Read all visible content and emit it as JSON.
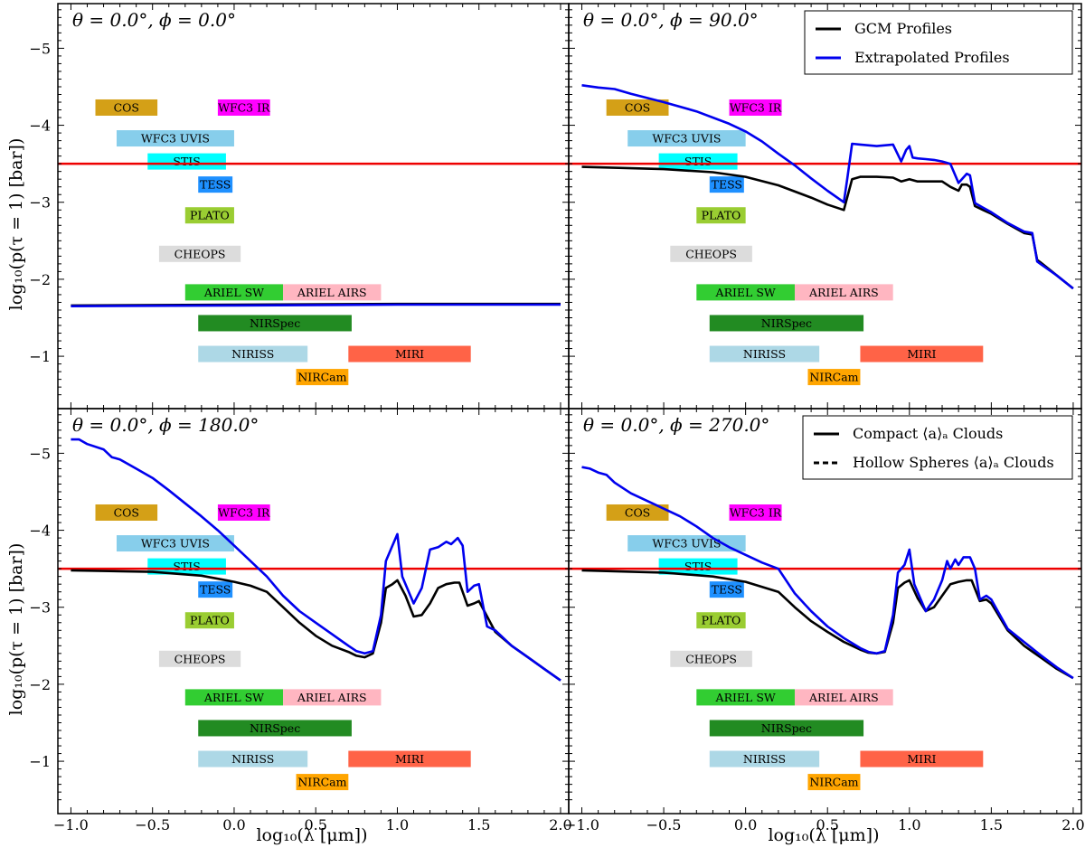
{
  "chart_data": {
    "type": "line",
    "xlabel": "log₁₀(λ [μm])",
    "ylabel": "log₁₀(p(τ = 1) [bar])",
    "xlim": [
      -1.08,
      2.05
    ],
    "ylim": [
      -5.58,
      -0.32
    ],
    "y_inverted": true,
    "xticks": [
      -1.0,
      -0.5,
      0.0,
      0.5,
      1.0,
      1.5,
      2.0
    ],
    "xtick_labels": [
      "−1.0",
      "−0.5",
      "0.0",
      "0.5",
      "1.0",
      "1.5",
      "2.0"
    ],
    "yticks": [
      -5,
      -4,
      -3,
      -2,
      -1
    ],
    "ytick_labels": [
      "−5",
      "−4",
      "−3",
      "−2",
      "−1"
    ],
    "reference_line": {
      "y": -3.5,
      "color": "#ee0000"
    },
    "colors": {
      "gcm": "#000000",
      "extrapolated": "#0000ee",
      "reference": "#ee0000"
    },
    "instrument_bands": [
      {
        "name": "COS",
        "x0": -0.85,
        "x1": -0.47,
        "y": -4.23,
        "color": "#d4a017"
      },
      {
        "name": "WFC3 IR",
        "x0": -0.1,
        "x1": 0.22,
        "y": -4.23,
        "color": "#ff00ff"
      },
      {
        "name": "WFC3 UVIS",
        "x0": -0.72,
        "x1": 0.0,
        "y": -3.83,
        "color": "#87ceeb"
      },
      {
        "name": "STIS",
        "x0": -0.53,
        "x1": -0.05,
        "y": -3.53,
        "color": "#00ffff"
      },
      {
        "name": "TESS",
        "x0": -0.22,
        "x1": -0.01,
        "y": -3.23,
        "color": "#1e90ff"
      },
      {
        "name": "PLATO",
        "x0": -0.3,
        "x1": 0.0,
        "y": -2.83,
        "color": "#9acd32"
      },
      {
        "name": "CHEOPS",
        "x0": -0.46,
        "x1": 0.04,
        "y": -2.33,
        "color": "#dcdcdc"
      },
      {
        "name": "ARIEL SW",
        "x0": -0.3,
        "x1": 0.3,
        "y": -1.83,
        "color": "#32cd32"
      },
      {
        "name": "ARIEL AIRS",
        "x0": 0.3,
        "x1": 0.9,
        "y": -1.83,
        "color": "#ffb6c1"
      },
      {
        "name": "NIRSpec",
        "x0": -0.22,
        "x1": 0.72,
        "y": -1.43,
        "color": "#228b22"
      },
      {
        "name": "NIRISS",
        "x0": -0.22,
        "x1": 0.45,
        "y": -1.03,
        "color": "#add8e6"
      },
      {
        "name": "MIRI",
        "x0": 0.7,
        "x1": 1.45,
        "y": -1.03,
        "color": "#ff6347"
      },
      {
        "name": "NIRCam",
        "x0": 0.38,
        "x1": 0.7,
        "y": -0.73,
        "color": "#ffa500"
      }
    ],
    "panels": [
      {
        "title": "θ = 0.0°, ϕ = 0.0°",
        "series": [
          {
            "name": "GCM Profiles",
            "color": "#000000",
            "x": [
              -1.0,
              0.0,
              1.0,
              1.5,
              2.0
            ],
            "y": [
              -1.66,
              -1.67,
              -1.68,
              -1.68,
              -1.68
            ]
          },
          {
            "name": "Extrapolated Profiles",
            "color": "#0000ee",
            "x": [
              -1.0,
              0.0,
              1.0,
              1.5,
              2.0
            ],
            "y": [
              -1.65,
              -1.66,
              -1.67,
              -1.67,
              -1.67
            ]
          }
        ]
      },
      {
        "title": "θ = 0.0°, ϕ = 90.0°",
        "legend": {
          "position": "upper right",
          "entries": [
            {
              "label": "GCM Profiles",
              "color": "#000000",
              "dash": "solid"
            },
            {
              "label": "Extrapolated Profiles",
              "color": "#0000ee",
              "dash": "solid"
            }
          ]
        },
        "series": [
          {
            "name": "GCM Profiles",
            "color": "#000000",
            "x": [
              -1.0,
              -0.5,
              -0.2,
              0.0,
              0.2,
              0.4,
              0.5,
              0.6,
              0.65,
              0.7,
              0.8,
              0.9,
              0.95,
              1.0,
              1.05,
              1.1,
              1.2,
              1.25,
              1.3,
              1.32,
              1.35,
              1.37,
              1.4,
              1.45,
              1.5,
              1.6,
              1.7,
              1.75,
              1.78,
              1.8,
              1.9,
              2.0
            ],
            "y": [
              -3.46,
              -3.43,
              -3.39,
              -3.33,
              -3.22,
              -3.06,
              -2.97,
              -2.9,
              -3.3,
              -3.33,
              -3.33,
              -3.32,
              -3.27,
              -3.3,
              -3.27,
              -3.27,
              -3.27,
              -3.2,
              -3.15,
              -3.23,
              -3.23,
              -3.2,
              -2.95,
              -2.9,
              -2.85,
              -2.72,
              -2.6,
              -2.58,
              -2.25,
              -2.22,
              -2.05,
              -1.88
            ]
          },
          {
            "name": "Extrapolated Profiles",
            "color": "#0000ee",
            "x": [
              -1.0,
              -0.9,
              -0.8,
              -0.7,
              -0.5,
              -0.3,
              -0.1,
              0.0,
              0.1,
              0.2,
              0.3,
              0.4,
              0.5,
              0.6,
              0.62,
              0.65,
              0.7,
              0.8,
              0.9,
              0.95,
              0.98,
              1.0,
              1.02,
              1.05,
              1.1,
              1.15,
              1.2,
              1.25,
              1.3,
              1.35,
              1.37,
              1.4,
              1.45,
              1.5,
              1.6,
              1.7,
              1.75,
              1.78,
              1.8,
              1.9,
              2.0
            ],
            "y": [
              -4.52,
              -4.49,
              -4.47,
              -4.41,
              -4.3,
              -4.18,
              -4.02,
              -3.92,
              -3.79,
              -3.63,
              -3.48,
              -3.31,
              -3.15,
              -3.0,
              -3.3,
              -3.76,
              -3.75,
              -3.73,
              -3.75,
              -3.53,
              -3.68,
              -3.73,
              -3.58,
              -3.57,
              -3.56,
              -3.55,
              -3.53,
              -3.5,
              -3.25,
              -3.37,
              -3.35,
              -2.99,
              -2.93,
              -2.87,
              -2.73,
              -2.62,
              -2.6,
              -2.23,
              -2.2,
              -2.05,
              -1.88
            ]
          }
        ]
      },
      {
        "title": "θ = 0.0°, ϕ = 180.0°",
        "series": [
          {
            "name": "GCM Profiles",
            "color": "#000000",
            "x": [
              -1.0,
              -0.5,
              -0.2,
              0.0,
              0.1,
              0.2,
              0.3,
              0.4,
              0.5,
              0.6,
              0.7,
              0.75,
              0.8,
              0.85,
              0.9,
              0.93,
              0.97,
              1.0,
              1.05,
              1.1,
              1.15,
              1.2,
              1.25,
              1.3,
              1.35,
              1.38,
              1.43,
              1.47,
              1.5,
              1.6,
              1.7,
              1.8,
              1.9,
              2.0
            ],
            "y": [
              -3.48,
              -3.46,
              -3.41,
              -3.33,
              -3.28,
              -3.2,
              -3.0,
              -2.8,
              -2.63,
              -2.5,
              -2.42,
              -2.37,
              -2.35,
              -2.4,
              -2.8,
              -3.25,
              -3.3,
              -3.35,
              -3.15,
              -2.88,
              -2.9,
              -3.05,
              -3.25,
              -3.3,
              -3.32,
              -3.32,
              -3.02,
              -3.05,
              -3.08,
              -2.68,
              -2.5,
              -2.35,
              -2.2,
              -2.05
            ]
          },
          {
            "name": "Extrapolated Profiles",
            "color": "#0000ee",
            "x": [
              -1.0,
              -0.95,
              -0.9,
              -0.8,
              -0.75,
              -0.7,
              -0.6,
              -0.5,
              -0.4,
              -0.3,
              -0.2,
              -0.1,
              0.0,
              0.1,
              0.2,
              0.3,
              0.4,
              0.5,
              0.6,
              0.7,
              0.75,
              0.8,
              0.85,
              0.9,
              0.93,
              0.97,
              1.0,
              1.03,
              1.05,
              1.1,
              1.15,
              1.2,
              1.25,
              1.3,
              1.33,
              1.37,
              1.4,
              1.43,
              1.47,
              1.5,
              1.55,
              1.6,
              1.7,
              1.8,
              1.9,
              2.0
            ],
            "y": [
              -5.18,
              -5.18,
              -5.12,
              -5.05,
              -4.95,
              -4.92,
              -4.8,
              -4.68,
              -4.52,
              -4.35,
              -4.18,
              -4.0,
              -3.8,
              -3.6,
              -3.4,
              -3.15,
              -2.95,
              -2.8,
              -2.65,
              -2.5,
              -2.43,
              -2.4,
              -2.43,
              -2.9,
              -3.6,
              -3.8,
              -3.95,
              -3.4,
              -3.3,
              -3.05,
              -3.25,
              -3.75,
              -3.78,
              -3.85,
              -3.82,
              -3.9,
              -3.8,
              -3.2,
              -3.28,
              -3.3,
              -2.75,
              -2.7,
              -2.5,
              -2.35,
              -2.2,
              -2.05
            ]
          }
        ]
      },
      {
        "title": "θ = 0.0°, ϕ = 270.0°",
        "legend": {
          "position": "upper right",
          "entries": [
            {
              "label": "Compact ⟨a⟩ₐ Clouds",
              "color": "#000000",
              "dash": "solid"
            },
            {
              "label": "Hollow Spheres ⟨a⟩ₐ Clouds",
              "color": "#000000",
              "dash": "dashed"
            }
          ]
        },
        "series": [
          {
            "name": "GCM Profiles",
            "color": "#000000",
            "x": [
              -1.0,
              -0.5,
              -0.2,
              0.0,
              0.2,
              0.3,
              0.4,
              0.5,
              0.6,
              0.7,
              0.75,
              0.8,
              0.85,
              0.9,
              0.93,
              0.97,
              1.0,
              1.05,
              1.1,
              1.15,
              1.2,
              1.25,
              1.3,
              1.35,
              1.38,
              1.43,
              1.47,
              1.5,
              1.6,
              1.7,
              1.8,
              1.9,
              2.0
            ],
            "y": [
              -3.48,
              -3.45,
              -3.4,
              -3.33,
              -3.2,
              -3.0,
              -2.82,
              -2.68,
              -2.55,
              -2.45,
              -2.41,
              -2.4,
              -2.42,
              -2.8,
              -3.25,
              -3.32,
              -3.35,
              -3.12,
              -2.95,
              -3.0,
              -3.15,
              -3.3,
              -3.33,
              -3.35,
              -3.35,
              -3.08,
              -3.1,
              -3.05,
              -2.7,
              -2.5,
              -2.35,
              -2.2,
              -2.08
            ]
          },
          {
            "name": "Extrapolated Profiles",
            "color": "#0000ee",
            "x": [
              -1.0,
              -0.95,
              -0.9,
              -0.85,
              -0.8,
              -0.7,
              -0.6,
              -0.5,
              -0.4,
              -0.3,
              -0.2,
              -0.1,
              0.0,
              0.1,
              0.2,
              0.3,
              0.4,
              0.5,
              0.6,
              0.7,
              0.75,
              0.8,
              0.85,
              0.9,
              0.93,
              0.97,
              1.0,
              1.03,
              1.05,
              1.1,
              1.15,
              1.2,
              1.23,
              1.25,
              1.28,
              1.3,
              1.33,
              1.37,
              1.4,
              1.43,
              1.47,
              1.5,
              1.6,
              1.7,
              1.8,
              1.9,
              2.0
            ],
            "y": [
              -4.82,
              -4.8,
              -4.75,
              -4.72,
              -4.62,
              -4.48,
              -4.38,
              -4.28,
              -4.18,
              -4.05,
              -3.9,
              -3.78,
              -3.68,
              -3.58,
              -3.5,
              -3.18,
              -2.95,
              -2.75,
              -2.6,
              -2.47,
              -2.42,
              -2.4,
              -2.43,
              -2.9,
              -3.45,
              -3.55,
              -3.75,
              -3.3,
              -3.2,
              -2.95,
              -3.1,
              -3.35,
              -3.6,
              -3.5,
              -3.62,
              -3.55,
              -3.65,
              -3.65,
              -3.5,
              -3.1,
              -3.15,
              -3.1,
              -2.72,
              -2.55,
              -2.38,
              -2.22,
              -2.08
            ]
          }
        ]
      }
    ]
  }
}
